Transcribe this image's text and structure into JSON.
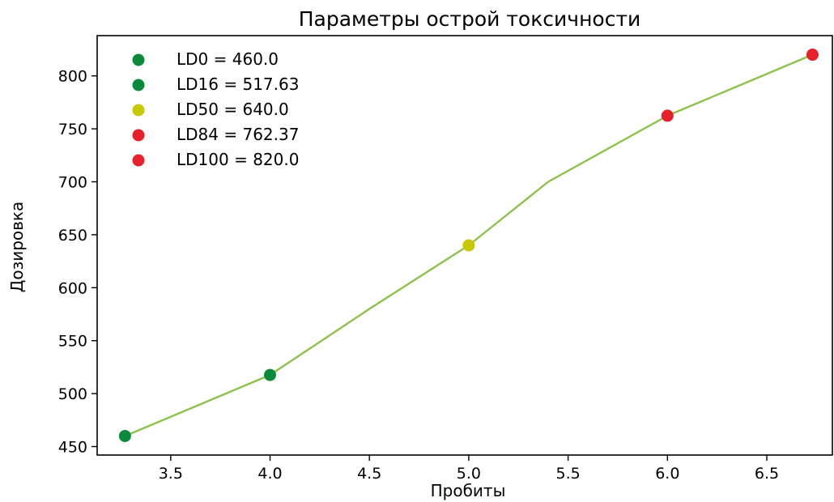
{
  "chart_data": {
    "type": "line",
    "title": "Параметры острой токсичности",
    "xlabel": "Пробиты",
    "ylabel": "Дозировка",
    "xlim": [
      3.13,
      6.83
    ],
    "ylim": [
      442,
      838
    ],
    "xticks": [
      3.5,
      4.0,
      4.5,
      5.0,
      5.5,
      6.0,
      6.5
    ],
    "xtick_labels": [
      "3.5",
      "4.0",
      "4.5",
      "5.0",
      "5.5",
      "6.0",
      "6.5"
    ],
    "yticks": [
      450,
      500,
      550,
      600,
      650,
      700,
      750,
      800
    ],
    "ytick_labels": [
      "450",
      "500",
      "550",
      "600",
      "650",
      "700",
      "750",
      "800"
    ],
    "grid": false,
    "legend_position": "top-left",
    "line": {
      "color": "#8bc34a",
      "x": [
        3.27,
        4.0,
        4.5,
        5.0,
        5.4,
        6.0,
        6.73
      ],
      "y": [
        460,
        517.63,
        580,
        640,
        700,
        762.37,
        820
      ]
    },
    "points": [
      {
        "name": "LD0 = 460.0",
        "x": 3.27,
        "y": 460.0,
        "color": "#0a8a3a"
      },
      {
        "name": "LD16 = 517.63",
        "x": 4.0,
        "y": 517.63,
        "color": "#0a8a3a"
      },
      {
        "name": "LD50 = 640.0",
        "x": 5.0,
        "y": 640.0,
        "color": "#c8c800"
      },
      {
        "name": "LD84 = 762.37",
        "x": 6.0,
        "y": 762.37,
        "color": "#e8202a"
      },
      {
        "name": "LD100 = 820.0",
        "x": 6.73,
        "y": 820.0,
        "color": "#e8202a"
      }
    ]
  }
}
